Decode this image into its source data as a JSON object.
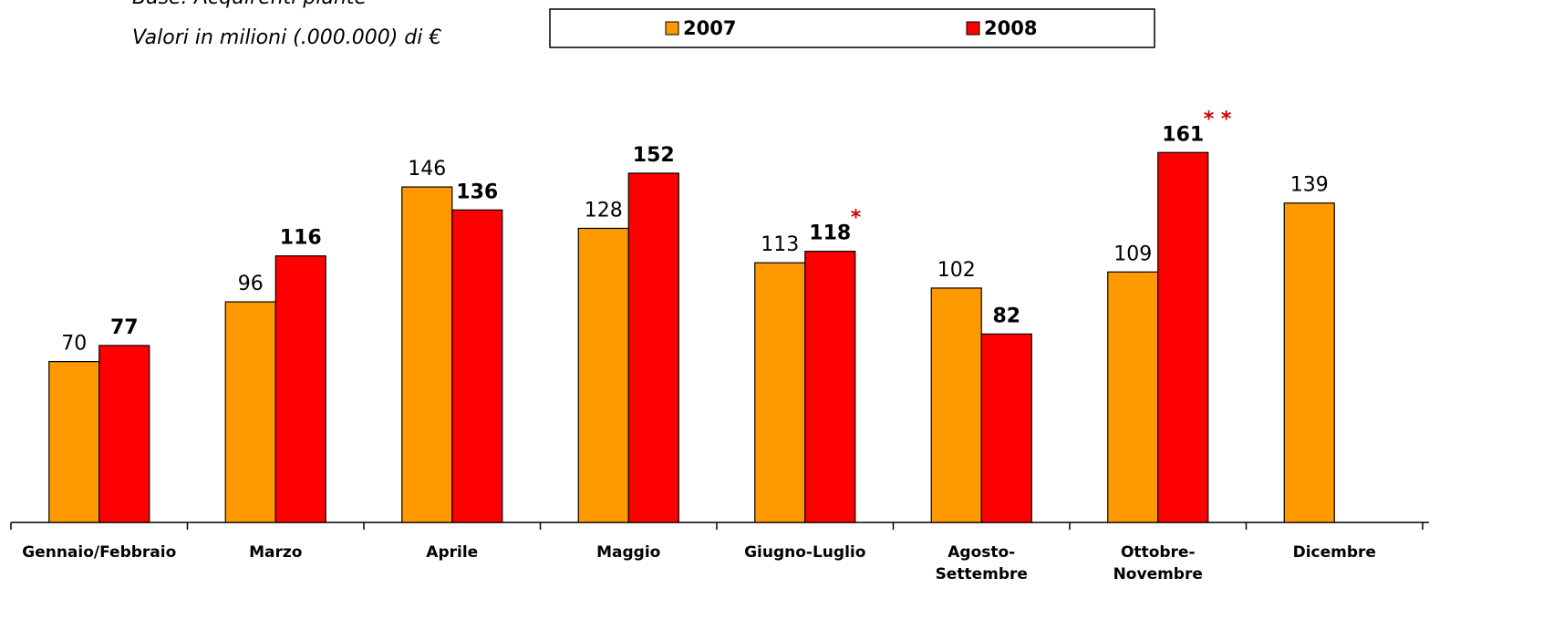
{
  "chart_data": {
    "type": "bar",
    "subtitle": "Base: Acquirenti piante",
    "note": "Valori  in milioni (.000.000) di €",
    "categories": [
      "Gennaio/Febbraio",
      "Marzo",
      "Aprile",
      "Maggio",
      "Giugno-Luglio",
      "Agosto-\nSettembre",
      "Ottobre-\nNovembre",
      "Dicembre"
    ],
    "series": [
      {
        "name": "2007",
        "color": "#ff9900",
        "values": [
          70,
          96,
          146,
          128,
          113,
          102,
          109,
          139
        ]
      },
      {
        "name": "2008",
        "color": "#ff0000",
        "values": [
          77,
          116,
          136,
          152,
          118,
          82,
          161,
          null
        ]
      }
    ],
    "annotations": [
      "*",
      "* *"
    ],
    "legend": "top"
  }
}
